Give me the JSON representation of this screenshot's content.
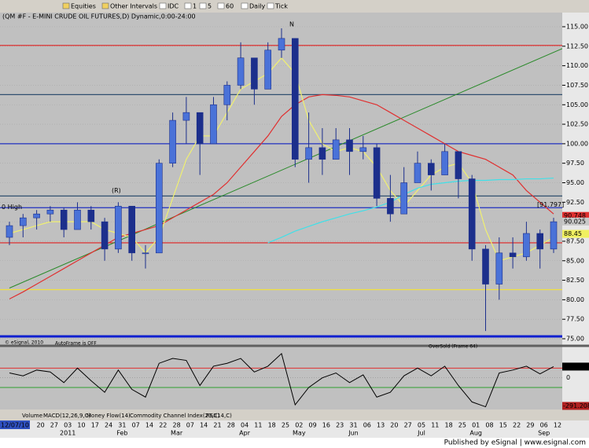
{
  "toolbar": {
    "items": [
      "Equities",
      "Other Intervals",
      "IDC",
      "1",
      "5",
      "60",
      "Daily",
      "Tick"
    ]
  },
  "tabs": [
    "Volume",
    "MACD(12,26,9,C)",
    "Money Flow(14)",
    "Commodity Channel Index(23,C)",
    "RSI(14,C)"
  ],
  "footer": "Published by eSignal | www.esignal.com",
  "chart_data": {
    "type": "candlestick",
    "title": "(QM #F - E-MINI CRUDE OIL FUTURES,D) Dynamic,0:00-24:00",
    "categories": [
      "12/07/10",
      null,
      "20",
      "27",
      "03",
      "10",
      "17",
      "24",
      "31",
      "07",
      "14",
      "22",
      "28",
      "07",
      "14",
      "21",
      "28",
      "04",
      "11",
      "18",
      "25",
      "02",
      "09",
      "16",
      "23",
      "31",
      "06",
      "13",
      "20",
      "27",
      "05",
      "11",
      "18",
      "25",
      "01",
      "08",
      "15",
      "22",
      "29",
      "06",
      "12"
    ],
    "months": [
      null,
      null,
      null,
      null,
      "2011",
      null,
      null,
      null,
      "Feb",
      null,
      null,
      null,
      "Mar",
      null,
      null,
      null,
      null,
      "Apr",
      null,
      null,
      null,
      "May",
      null,
      null,
      null,
      "Jun",
      null,
      null,
      null,
      null,
      "Jul",
      null,
      null,
      null,
      "Aug",
      null,
      null,
      null,
      null,
      "Sep",
      null
    ],
    "open": [
      88,
      89.5,
      90.5,
      91,
      91.5,
      89,
      91.5,
      90,
      86.5,
      92,
      86,
      86,
      97.5,
      103,
      104,
      100,
      105,
      107.5,
      111,
      107,
      112,
      113.5,
      98,
      99.5,
      98,
      100.5,
      99,
      99.5,
      93,
      91,
      95,
      97.5,
      96,
      99,
      95.5,
      86.5,
      82,
      86,
      85.5,
      88.5,
      86.5
    ],
    "high": [
      90,
      91,
      91.5,
      92,
      91.8,
      92.5,
      92,
      90.5,
      92.5,
      92,
      87,
      98,
      104,
      106,
      104,
      106,
      108,
      113,
      111,
      113,
      114.8,
      113.5,
      104,
      102,
      102,
      102,
      101,
      100,
      96,
      97,
      99,
      98,
      100,
      99,
      96,
      87,
      88,
      88,
      90,
      89,
      90.5
    ],
    "low": [
      87,
      88,
      89,
      90,
      88,
      89,
      89,
      85,
      86,
      85,
      84,
      86,
      97,
      100,
      96,
      100,
      103,
      107,
      105,
      107,
      111,
      97,
      95,
      96,
      98,
      96,
      98,
      92,
      90,
      91,
      95,
      94,
      96,
      93,
      85,
      76,
      80,
      84,
      85,
      84,
      86
    ],
    "close": [
      89.5,
      90.5,
      91,
      91.5,
      89,
      91.5,
      90,
      86.5,
      92,
      86,
      86,
      97.5,
      103,
      104,
      100,
      105,
      107.5,
      111,
      107,
      112,
      113.5,
      98,
      99.5,
      98,
      100.5,
      99,
      99.5,
      93,
      91,
      95,
      97.5,
      96,
      99,
      95.5,
      86.5,
      82,
      86,
      85.5,
      88.5,
      86.5,
      90
    ],
    "up_color": "#4a72d8",
    "down_color": "#1c2f8c",
    "ylim": [
      74.5,
      117.5
    ],
    "yticks": [
      {
        "value": 75,
        "label": "75.00"
      },
      {
        "value": 77.5,
        "label": "77.50"
      },
      {
        "value": 80,
        "label": "80.00"
      },
      {
        "value": 82.5,
        "label": "82.50"
      },
      {
        "value": 85,
        "label": "85.00"
      },
      {
        "value": 87.5,
        "label": "87.50"
      },
      {
        "value": 90,
        "label": "90.00"
      },
      {
        "value": 92.5,
        "label": "92.50"
      },
      {
        "value": 95,
        "label": "95.00"
      },
      {
        "value": 97.5,
        "label": "97.50"
      },
      {
        "value": 100,
        "label": "100.00"
      },
      {
        "value": 102.5,
        "label": "102.50"
      },
      {
        "value": 105,
        "label": "105.00"
      },
      {
        "value": 107.5,
        "label": "107.50"
      },
      {
        "value": 110,
        "label": "110.00"
      },
      {
        "value": 112.5,
        "label": "112.50"
      },
      {
        "value": 115,
        "label": "115.00"
      }
    ],
    "grid": true,
    "lines": [
      {
        "color": "#e03030",
        "values": [
          80.1,
          81,
          82,
          83,
          84,
          85,
          86,
          87,
          88,
          88.5,
          89,
          89.5,
          90.5,
          91.5,
          92.5,
          93.5,
          95,
          97,
          99,
          101,
          103.5,
          105,
          106,
          106.3,
          106.2,
          106,
          105.5,
          105,
          104,
          103,
          102,
          101,
          100,
          99,
          98.5,
          98,
          97,
          96,
          94,
          92.5,
          91
        ]
      },
      {
        "color": "#f0f070",
        "values": [
          88.5,
          89,
          89.5,
          90,
          90,
          90,
          90,
          89,
          88.5,
          88,
          86,
          88,
          93,
          98,
          101,
          101,
          104,
          107,
          108,
          109,
          111,
          109,
          103,
          100,
          99,
          99.5,
          99,
          97,
          94,
          92,
          94,
          96,
          97,
          97.5,
          95,
          89,
          85,
          85.5,
          86,
          87,
          88
        ]
      },
      {
        "color": "#40e0e8",
        "values": [
          null,
          null,
          null,
          null,
          null,
          null,
          null,
          null,
          null,
          null,
          null,
          null,
          null,
          null,
          null,
          null,
          null,
          null,
          null,
          87.3,
          88,
          88.8,
          89.4,
          90,
          90.5,
          91,
          91.4,
          91.9,
          92.5,
          93.5,
          94.3,
          94.8,
          95,
          95.2,
          95.3,
          95.3,
          95.4,
          95.4,
          95.5,
          95.5,
          95.6
        ]
      }
    ],
    "trendline": {
      "color": "#2a8a2a",
      "values": [
        81.5,
        112.2
      ]
    },
    "levels": [
      {
        "value": 112.6,
        "color": "#e02020"
      },
      {
        "value": 106.3,
        "color": "#305070"
      },
      {
        "value": 100,
        "color": "#2030c0"
      },
      {
        "value": 93.3,
        "color": "#305070"
      },
      {
        "value": 91.8,
        "color": "#2030c0"
      },
      {
        "value": 87.3,
        "color": "#e02020"
      },
      {
        "value": 81.3,
        "color": "#f0e040"
      },
      {
        "value": 75.3,
        "color": "#1020d0"
      }
    ],
    "price_labels": [
      {
        "value": 90.748,
        "label": "90.748",
        "bg": "#e03030"
      },
      {
        "value": 90.025,
        "label": "90.025",
        "bg": "#c8c8c8"
      },
      {
        "value": 88.45,
        "label": "88.45",
        "bg": "#f0f060"
      }
    ],
    "annotations": [
      "0 High",
      "[91.797]",
      "(R)",
      "N",
      "AutoFrame is OFF",
      "OverSold (Frame 64)",
      "© eSignal, 2010"
    ],
    "indicator": {
      "type": "line",
      "color": "#000000",
      "values": [
        50,
        20,
        80,
        60,
        -50,
        100,
        -30,
        -150,
        80,
        -120,
        -200,
        150,
        200,
        180,
        -80,
        120,
        150,
        200,
        60,
        120,
        250,
        -280,
        -100,
        0,
        50,
        -50,
        30,
        -200,
        -150,
        20,
        100,
        20,
        120,
        -80,
        -250,
        -300,
        50,
        80,
        120,
        40,
        115.767
      ],
      "value_labels": [
        null,
        null,
        null,
        null,
        null,
        null,
        null,
        null,
        null,
        null,
        null,
        null,
        null,
        null,
        null,
        null,
        null,
        null,
        null,
        null,
        null,
        null,
        null,
        null,
        null,
        null,
        null,
        null,
        null,
        null,
        null,
        null,
        null,
        null,
        null,
        null,
        null,
        null,
        null,
        null,
        "115.767"
      ],
      "ylim": [
        -320,
        290
      ],
      "yticks": [
        0
      ],
      "levels": [
        {
          "value": 100,
          "color": "#e03030"
        },
        {
          "value": -100,
          "color": "#30a030"
        }
      ],
      "min_label": {
        "value": -291.208,
        "label": "-291.208"
      }
    }
  }
}
